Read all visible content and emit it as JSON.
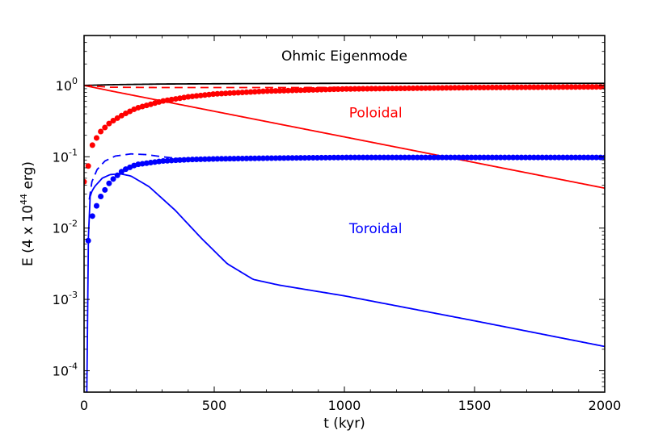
{
  "chart_data": {
    "type": "line",
    "title": "",
    "xlabel": "t (kyr)",
    "ylabel": "E (4 x 10",
    "ylabel_exponent": "44",
    "ylabel_unit": " erg)",
    "xscale": "linear",
    "yscale": "log",
    "xlim": [
      0,
      2000
    ],
    "ylim_log10": [
      -4.3,
      0.7
    ],
    "x_ticks": [
      0,
      500,
      1000,
      1500,
      2000
    ],
    "x_tick_labels": [
      "0",
      "500",
      "1000",
      "1500",
      "2000"
    ],
    "y_ticks_log10": [
      0,
      -1,
      -2,
      -3,
      -4
    ],
    "y_tick_labels": [
      {
        "base": "10",
        "exp": "0"
      },
      {
        "base": "10",
        "exp": "-1"
      },
      {
        "base": "10",
        "exp": "-2"
      },
      {
        "base": "10",
        "exp": "-3"
      },
      {
        "base": "10",
        "exp": "-4"
      }
    ],
    "annotations": [
      {
        "text": "Ohmic Eigenmode",
        "x": 1000,
        "y_log10": 0.35,
        "color": "#000000"
      },
      {
        "text": "Poloidal",
        "x": 1120,
        "y_log10": -0.45,
        "color": "#ff0000"
      },
      {
        "text": "Toroidal",
        "x": 1120,
        "y_log10": -2.07,
        "color": "#0000ff"
      }
    ],
    "series": [
      {
        "name": "Ohmic eigenmode total",
        "color": "#000000",
        "style": "solid",
        "x": [
          0,
          100,
          300,
          600,
          1000,
          1500,
          2000
        ],
        "y_log10": [
          0.0,
          0.01,
          0.02,
          0.025,
          0.03,
          0.03,
          0.03
        ]
      },
      {
        "name": "Poloidal (eigenmode)",
        "color": "#ff0000",
        "style": "solid",
        "x": [
          0,
          100,
          2000
        ],
        "y_log10": [
          0.0,
          -0.075,
          -1.44
        ]
      },
      {
        "name": "Poloidal (dashed)",
        "color": "#ff0000",
        "style": "dashed",
        "x": [
          0,
          100,
          300,
          800,
          1500,
          2000
        ],
        "y_log10": [
          0.0,
          -0.025,
          -0.03,
          -0.03,
          -0.02,
          -0.01
        ]
      },
      {
        "name": "Poloidal (dotted)",
        "color": "#ff0000",
        "style": "dots",
        "x": [
          0,
          10,
          30,
          60,
          100,
          150,
          200,
          300,
          400,
          500,
          700,
          1000,
          1500,
          2000
        ],
        "y_log10": [
          -1.35,
          -1.25,
          -0.85,
          -0.66,
          -0.52,
          -0.41,
          -0.32,
          -0.22,
          -0.16,
          -0.12,
          -0.08,
          -0.05,
          -0.03,
          -0.02
        ]
      },
      {
        "name": "Toroidal (eigenmode)",
        "color": "#0000ff",
        "style": "solid",
        "x": [
          10,
          14,
          18,
          25,
          40,
          70,
          100,
          140,
          180,
          250,
          350,
          450,
          550,
          650,
          750,
          1000,
          1500,
          2000
        ],
        "y_log10": [
          -4.5,
          -3.0,
          -1.68,
          -1.52,
          -1.42,
          -1.3,
          -1.25,
          -1.24,
          -1.27,
          -1.42,
          -1.75,
          -2.14,
          -2.5,
          -2.72,
          -2.8,
          -2.95,
          -3.3,
          -3.66
        ]
      },
      {
        "name": "Toroidal (dashed)",
        "color": "#0000ff",
        "style": "dashed",
        "x": [
          20,
          30,
          50,
          80,
          120,
          180,
          240,
          300,
          400
        ],
        "y_log10": [
          -1.6,
          -1.35,
          -1.18,
          -1.06,
          -0.99,
          -0.96,
          -0.97,
          -1.0,
          -1.04
        ]
      },
      {
        "name": "Toroidal (dotted)",
        "color": "#0000ff",
        "style": "dots",
        "x": [
          15,
          30,
          60,
          100,
          150,
          200,
          300,
          400,
          500,
          700,
          1000,
          1500,
          2000
        ],
        "y_log10": [
          -2.2,
          -1.85,
          -1.58,
          -1.35,
          -1.19,
          -1.11,
          -1.06,
          -1.04,
          -1.03,
          -1.02,
          -1.01,
          -1.01,
          -1.01
        ]
      }
    ]
  }
}
